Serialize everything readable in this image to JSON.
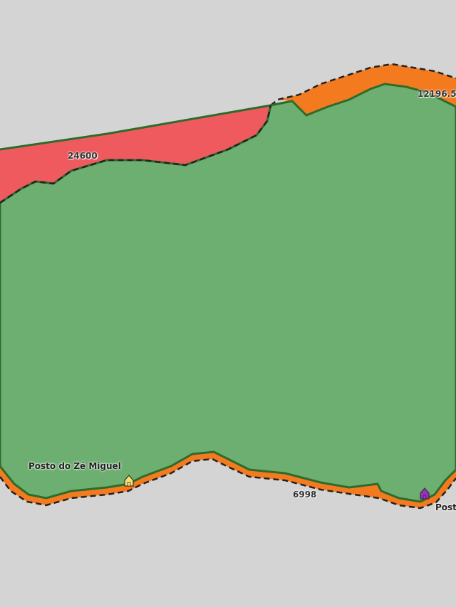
{
  "map": {
    "colors": {
      "background": "#d4d4d4",
      "green_area": "#6daf70",
      "red_area": "#ef5a5e",
      "orange_band": "#f47a1f",
      "border_green": "#2e6b2a",
      "dashed_border": "#222222"
    },
    "area_labels": [
      {
        "id": "red-area",
        "text": "24600"
      },
      {
        "id": "orange-top",
        "text": "12196.5"
      },
      {
        "id": "orange-bottom",
        "text": "6998"
      }
    ],
    "places": [
      {
        "name": "Posto do Zé Miguel",
        "icon": "house-icon",
        "color": "#f5e06e"
      },
      {
        "name": "Post",
        "icon": "house-icon",
        "color": "#9b2fbf"
      }
    ]
  }
}
